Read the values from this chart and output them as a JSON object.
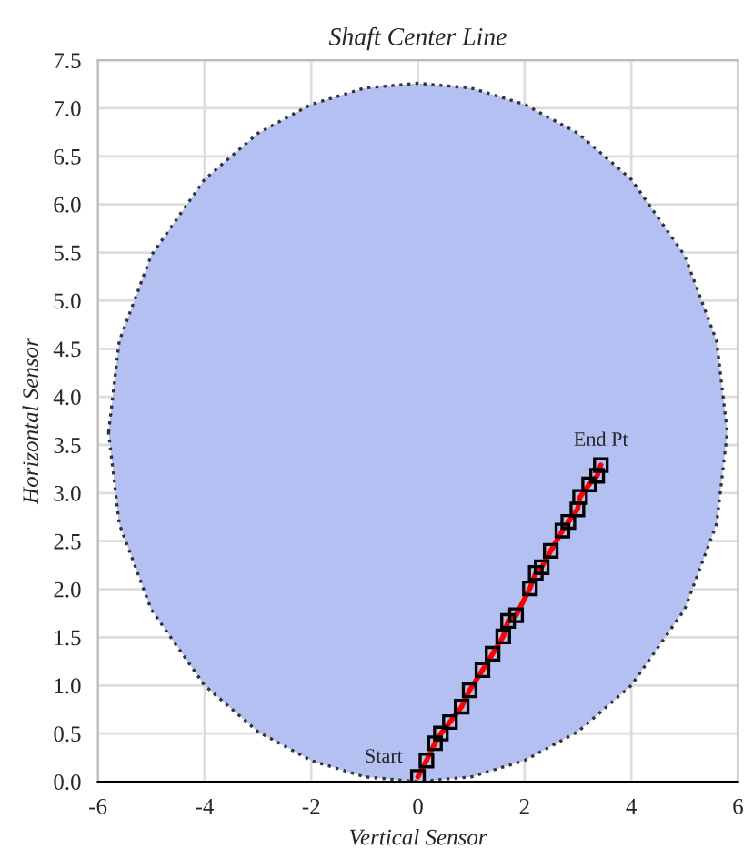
{
  "chart_data": {
    "type": "line",
    "title": "Shaft Center Line",
    "xlabel": "Vertical Sensor",
    "ylabel": "Horizontal Sensor",
    "series": [
      {
        "type": "area",
        "color": "#b4bff2",
        "line_style": "dotted",
        "x": [
          -5.8,
          -5.6,
          -5,
          -4,
          -3,
          -2,
          -1,
          0,
          1,
          2,
          3,
          4,
          5,
          5.6,
          5.8,
          5.6,
          5,
          4,
          3,
          2,
          1,
          0,
          -1,
          -2,
          -3,
          -4,
          -5,
          -5.6
        ],
        "values": [
          3.63,
          4.58,
          5.47,
          6.26,
          6.74,
          7.04,
          7.21,
          7.26,
          7.21,
          7.04,
          6.74,
          6.26,
          5.47,
          4.58,
          3.63,
          2.68,
          1.79,
          1.0,
          0.52,
          0.22,
          0.05,
          0,
          0.05,
          0.22,
          0.52,
          1.0,
          1.79,
          2.68
        ]
      },
      {
        "color": "#ff0000",
        "marker": "square",
        "x": [
          0.0,
          0.16,
          0.32,
          0.43,
          0.6,
          0.82,
          0.97,
          1.21,
          1.4,
          1.6,
          1.69,
          1.84,
          2.1,
          2.21,
          2.32,
          2.49,
          2.71,
          2.82,
          2.99,
          3.04,
          3.21,
          3.36,
          3.43
        ],
        "values": [
          0.05,
          0.22,
          0.4,
          0.5,
          0.62,
          0.78,
          0.95,
          1.16,
          1.33,
          1.51,
          1.67,
          1.73,
          2.01,
          2.17,
          2.23,
          2.4,
          2.61,
          2.7,
          2.83,
          2.96,
          3.09,
          3.18,
          3.29
        ]
      }
    ],
    "annotations": [
      {
        "text": "Start",
        "x": 0.0,
        "y": 0.05
      },
      {
        "text": "End Pt",
        "x": 3.43,
        "y": 3.29
      }
    ],
    "xlim": [
      -6,
      6
    ],
    "xticks": [
      -6,
      -4,
      -2,
      0,
      2,
      4,
      6
    ],
    "ylim": [
      0,
      7.5
    ],
    "yticks": [
      {
        "value": 0,
        "label": "0.0"
      },
      {
        "value": 0.5,
        "label": "0.5"
      },
      {
        "value": 1,
        "label": "1.0"
      },
      {
        "value": 1.5,
        "label": "1.5"
      },
      {
        "value": 2,
        "label": "2.0"
      },
      {
        "value": 2.5,
        "label": "2.5"
      },
      {
        "value": 3,
        "label": "3.0"
      },
      {
        "value": 3.5,
        "label": "3.5"
      },
      {
        "value": 4,
        "label": "4.0"
      },
      {
        "value": 4.5,
        "label": "4.5"
      },
      {
        "value": 5,
        "label": "5.0"
      },
      {
        "value": 5.5,
        "label": "5.5"
      },
      {
        "value": 6,
        "label": "6.0"
      },
      {
        "value": 6.5,
        "label": "6.5"
      },
      {
        "value": 7,
        "label": "7.0"
      },
      {
        "value": 7.5,
        "label": "7.5"
      }
    ],
    "grid": true
  }
}
